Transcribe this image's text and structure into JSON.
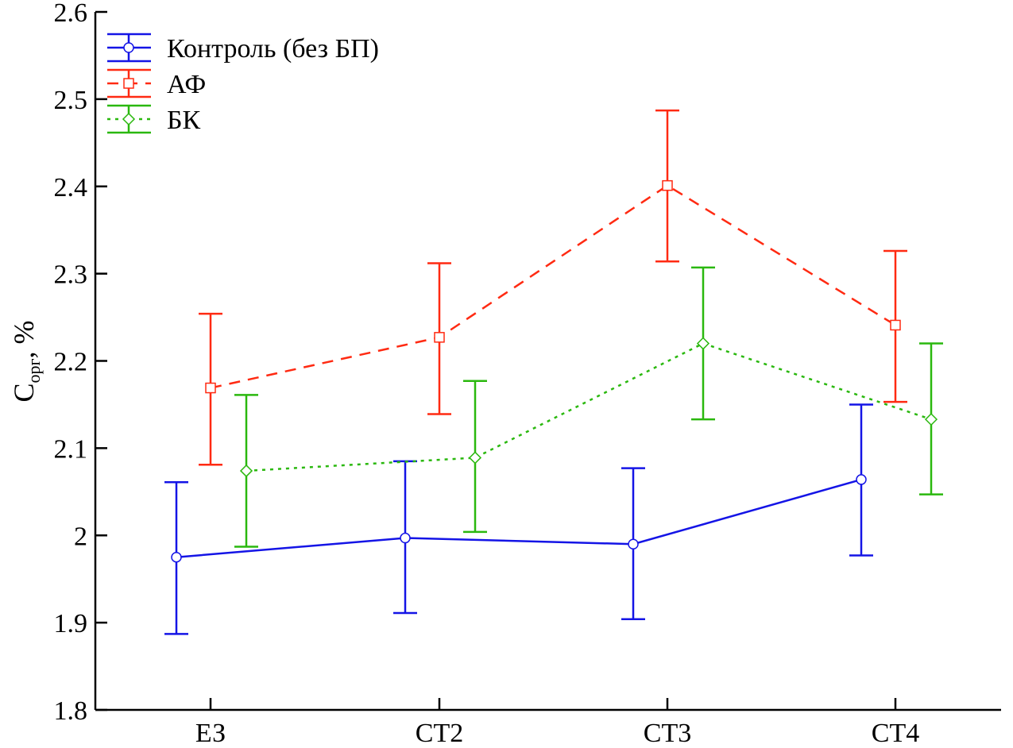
{
  "chart_data": {
    "type": "line",
    "title": "",
    "xlabel": "",
    "ylabel": {
      "main": "C",
      "sub": "орг",
      "suffix": ", %"
    },
    "categories": [
      "ЕЗ",
      "СТ2",
      "СТ3",
      "СТ4"
    ],
    "ylim": [
      1.8,
      2.6
    ],
    "yticks": [
      "1.8",
      "1.9",
      "2",
      "2.1",
      "2.2",
      "2.3",
      "2.4",
      "2.5",
      "2.6"
    ],
    "grid": false,
    "legend_position": "top-left",
    "error_bars": true,
    "series": [
      {
        "name": "Контроль (без БП)",
        "color": "#1414e6",
        "line_style": "solid",
        "marker": "circle",
        "values": [
          1.975,
          1.997,
          1.99,
          2.064
        ],
        "err_low": [
          1.887,
          1.911,
          1.904,
          1.977
        ],
        "err_high": [
          2.061,
          2.085,
          2.077,
          2.15
        ]
      },
      {
        "name": "АФ",
        "color": "#ff2a12",
        "line_style": "dashed",
        "marker": "square",
        "values": [
          2.169,
          2.227,
          2.401,
          2.241
        ],
        "err_low": [
          2.081,
          2.139,
          2.314,
          2.153
        ],
        "err_high": [
          2.254,
          2.312,
          2.487,
          2.326
        ]
      },
      {
        "name": "БК",
        "color": "#2ab80e",
        "line_style": "dotted",
        "marker": "diamond",
        "values": [
          2.074,
          2.089,
          2.22,
          2.133
        ],
        "err_low": [
          1.987,
          2.004,
          2.133,
          2.047
        ],
        "err_high": [
          2.161,
          2.177,
          2.307,
          2.22
        ]
      }
    ]
  }
}
